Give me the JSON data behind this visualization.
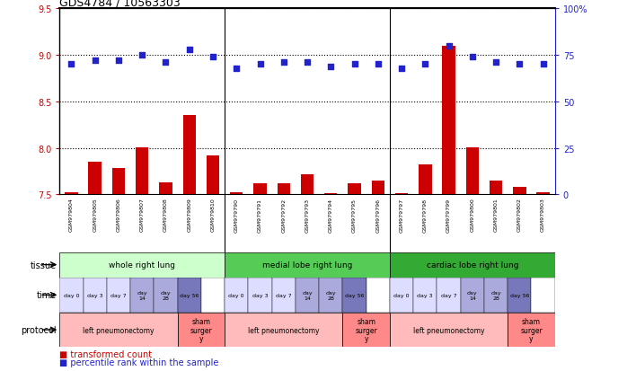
{
  "title": "GDS4784 / 10563303",
  "samples": [
    "GSM979804",
    "GSM979805",
    "GSM979806",
    "GSM979807",
    "GSM979808",
    "GSM979809",
    "GSM979810",
    "GSM979790",
    "GSM979791",
    "GSM979792",
    "GSM979793",
    "GSM979794",
    "GSM979795",
    "GSM979796",
    "GSM979797",
    "GSM979798",
    "GSM979799",
    "GSM979800",
    "GSM979801",
    "GSM979802",
    "GSM979803"
  ],
  "bar_values": [
    7.52,
    7.85,
    7.78,
    8.01,
    7.63,
    8.35,
    7.92,
    7.52,
    7.62,
    7.62,
    7.72,
    7.51,
    7.62,
    7.65,
    7.51,
    7.82,
    9.1,
    8.01,
    7.65,
    7.58,
    7.52
  ],
  "dot_values": [
    70,
    72,
    72,
    75,
    71,
    78,
    74,
    68,
    70,
    71,
    71,
    69,
    70,
    70,
    68,
    70,
    80,
    74,
    71,
    70,
    70
  ],
  "ylim_left": [
    7.5,
    9.5
  ],
  "ylim_right": [
    0,
    100
  ],
  "yticks_left": [
    7.5,
    8.0,
    8.5,
    9.0,
    9.5
  ],
  "yticks_right": [
    0,
    25,
    50,
    75,
    100
  ],
  "bar_color": "#cc0000",
  "dot_color": "#2222cc",
  "tissue_groups": [
    {
      "label": "whole right lung",
      "start": 0,
      "end": 7,
      "color": "#ccffcc"
    },
    {
      "label": "medial lobe right lung",
      "start": 7,
      "end": 14,
      "color": "#55cc55"
    },
    {
      "label": "cardiac lobe right lung",
      "start": 14,
      "end": 21,
      "color": "#33aa33"
    }
  ],
  "protocol_groups": [
    {
      "label": "left pneumonectomy",
      "start": 0,
      "end": 5,
      "color": "#ffbbbb"
    },
    {
      "label": "sham\nsurger\ny",
      "start": 5,
      "end": 7,
      "color": "#ff8888"
    },
    {
      "label": "left pneumonectomy",
      "start": 7,
      "end": 12,
      "color": "#ffbbbb"
    },
    {
      "label": "sham\nsurger\ny",
      "start": 12,
      "end": 14,
      "color": "#ff8888"
    },
    {
      "label": "left pneumonectomy",
      "start": 14,
      "end": 19,
      "color": "#ffbbbb"
    },
    {
      "label": "sham\nsurger\ny",
      "start": 19,
      "end": 21,
      "color": "#ff8888"
    }
  ],
  "time_map": {
    "0": [
      "day 0",
      "#ddddff"
    ],
    "1": [
      "day 3",
      "#ddddff"
    ],
    "2": [
      "day 7",
      "#ddddff"
    ],
    "3": [
      "day\n14",
      "#aaaadd"
    ],
    "4": [
      "day\n28",
      "#aaaadd"
    ],
    "5": [
      "day 56",
      "#7777bb"
    ],
    "6": [
      "",
      "#ffffff"
    ],
    "7": [
      "day 0",
      "#ddddff"
    ],
    "8": [
      "day 3",
      "#ddddff"
    ],
    "9": [
      "day 7",
      "#ddddff"
    ],
    "10": [
      "day\n14",
      "#aaaadd"
    ],
    "11": [
      "day\n28",
      "#aaaadd"
    ],
    "12": [
      "day 56",
      "#7777bb"
    ],
    "13": [
      "",
      "#ffffff"
    ],
    "14": [
      "day 0",
      "#ddddff"
    ],
    "15": [
      "day 3",
      "#ddddff"
    ],
    "16": [
      "day 7",
      "#ddddff"
    ],
    "17": [
      "day\n14",
      "#aaaadd"
    ],
    "18": [
      "day\n28",
      "#aaaadd"
    ],
    "19": [
      "day 56",
      "#7777bb"
    ],
    "20": [
      "",
      "#ffffff"
    ]
  },
  "group_dividers": [
    6.5,
    13.5
  ]
}
